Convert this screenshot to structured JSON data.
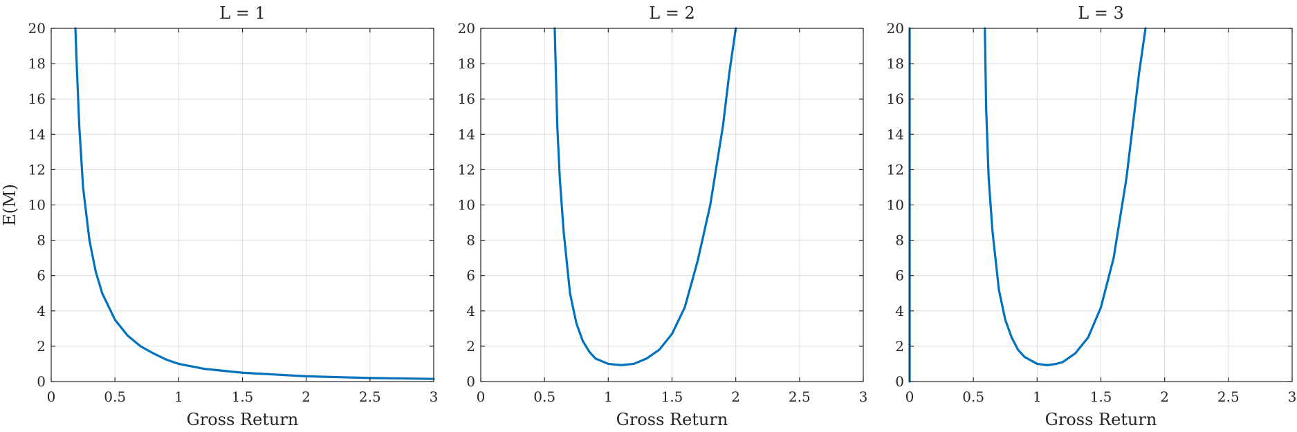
{
  "chart_data": [
    {
      "type": "line",
      "title": "L = 1",
      "xlabel": "Gross Return",
      "ylabel": "E(M)",
      "xlim": [
        0,
        3
      ],
      "ylim": [
        0,
        20
      ],
      "xticks": [
        "0",
        "0.5",
        "1",
        "1.5",
        "2",
        "2.5",
        "3"
      ],
      "yticks": [
        "0",
        "2",
        "4",
        "6",
        "8",
        "10",
        "12",
        "14",
        "16",
        "18",
        "20"
      ],
      "grid": true,
      "series": [
        {
          "color": "#0072BD",
          "x": [
            0.19,
            0.2,
            0.22,
            0.25,
            0.3,
            0.35,
            0.4,
            0.5,
            0.6,
            0.7,
            0.8,
            0.9,
            1.0,
            1.2,
            1.5,
            2.0,
            2.5,
            3.0
          ],
          "y": [
            20.0,
            18.0,
            14.5,
            11.0,
            8.0,
            6.2,
            5.0,
            3.5,
            2.6,
            2.0,
            1.6,
            1.25,
            1.0,
            0.72,
            0.5,
            0.3,
            0.2,
            0.15
          ]
        }
      ]
    },
    {
      "type": "line",
      "title": "L = 2",
      "xlabel": "Gross Return",
      "ylabel": "",
      "xlim": [
        0,
        3
      ],
      "ylim": [
        0,
        20
      ],
      "xticks": [
        "0",
        "0.5",
        "1",
        "1.5",
        "2",
        "2.5",
        "3"
      ],
      "yticks": [
        "0",
        "2",
        "4",
        "6",
        "8",
        "10",
        "12",
        "14",
        "16",
        "18",
        "20"
      ],
      "grid": true,
      "series": [
        {
          "color": "#0072BD",
          "x": [
            0.58,
            0.6,
            0.62,
            0.65,
            0.7,
            0.75,
            0.8,
            0.85,
            0.9,
            1.0,
            1.1,
            1.2,
            1.3,
            1.4,
            1.5,
            1.6,
            1.7,
            1.8,
            1.9,
            1.95,
            2.0
          ],
          "y": [
            20.0,
            14.5,
            11.5,
            8.5,
            5.0,
            3.3,
            2.3,
            1.7,
            1.3,
            1.0,
            0.93,
            1.0,
            1.3,
            1.8,
            2.7,
            4.2,
            6.8,
            10.0,
            14.5,
            17.5,
            20.0
          ]
        }
      ]
    },
    {
      "type": "line",
      "title": "L = 3",
      "xlabel": "Gross Return",
      "ylabel": "",
      "xlim": [
        0,
        3
      ],
      "ylim": [
        0,
        20
      ],
      "xticks": [
        "0",
        "0.5",
        "1",
        "1.5",
        "2",
        "2.5",
        "3"
      ],
      "yticks": [
        "0",
        "2",
        "4",
        "6",
        "8",
        "10",
        "12",
        "14",
        "16",
        "18",
        "20"
      ],
      "grid": true,
      "series": [
        {
          "color": "#0072BD",
          "x": [
            0.0,
            0.0
          ],
          "y": [
            0.0,
            20.0
          ]
        },
        {
          "color": "#0072BD",
          "x": [
            0.59,
            0.6,
            0.62,
            0.65,
            0.7,
            0.75,
            0.8,
            0.85,
            0.9,
            1.0,
            1.08,
            1.15,
            1.2,
            1.3,
            1.4,
            1.5,
            1.6,
            1.7,
            1.75,
            1.8,
            1.85
          ],
          "y": [
            20.0,
            15.5,
            11.5,
            8.5,
            5.2,
            3.5,
            2.5,
            1.8,
            1.4,
            1.0,
            0.93,
            1.0,
            1.1,
            1.6,
            2.5,
            4.2,
            7.0,
            11.5,
            14.5,
            17.5,
            20.0
          ]
        }
      ]
    }
  ]
}
